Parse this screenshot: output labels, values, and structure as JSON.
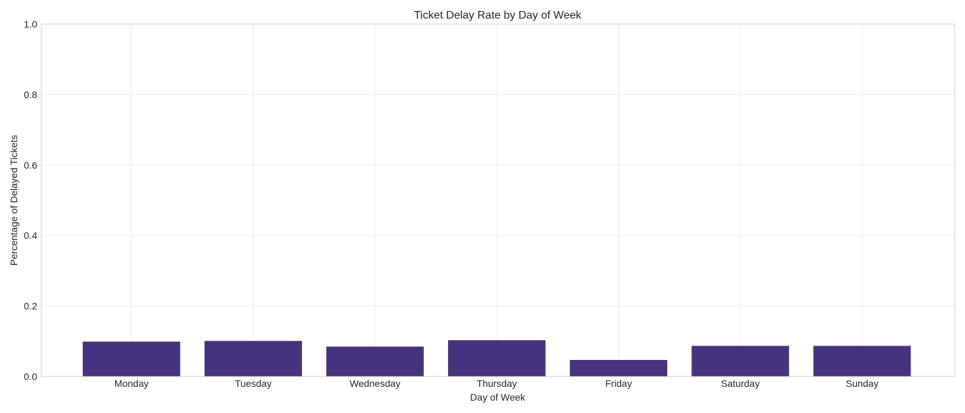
{
  "chart_data": {
    "type": "bar",
    "title": "Ticket Delay Rate by Day of Week",
    "xlabel": "Day of Week",
    "ylabel": "Percentage of Delayed Tickets",
    "categories": [
      "Monday",
      "Tuesday",
      "Wednesday",
      "Thursday",
      "Friday",
      "Saturday",
      "Sunday"
    ],
    "values": [
      0.099,
      0.101,
      0.085,
      0.103,
      0.047,
      0.087,
      0.087
    ],
    "ylim": [
      0,
      1.0
    ],
    "yticks": [
      "0.0",
      "0.2",
      "0.4",
      "0.6",
      "0.8",
      "1.0"
    ],
    "grid": true,
    "bar_color": "#46337e"
  }
}
